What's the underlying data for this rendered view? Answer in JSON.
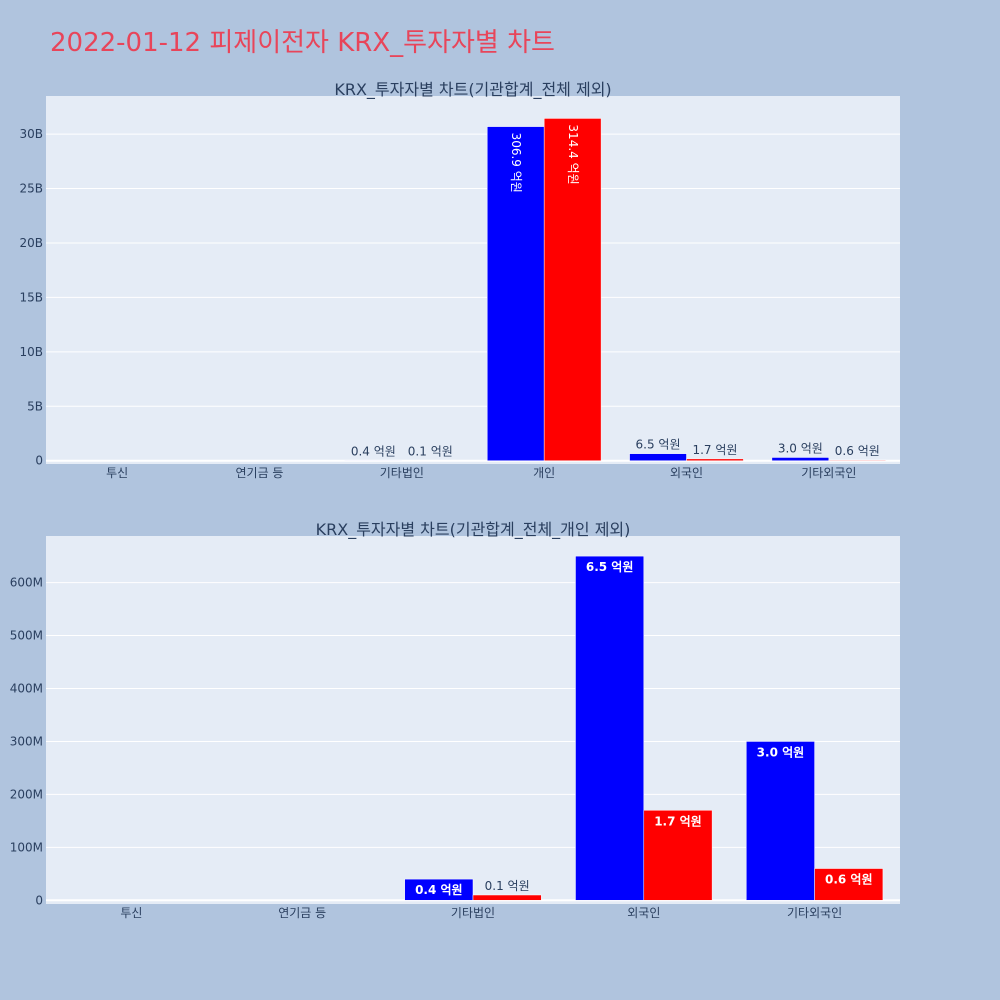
{
  "title": "2022-01-12 피제이전자 KRX_투자자별 차트",
  "colors": {
    "series1": "#0000ff",
    "series2": "#ff0000",
    "plot_bg": "#e5ecf6",
    "page_bg": "#b0c4de",
    "title": "#e8455a"
  },
  "chart_data": [
    {
      "type": "bar",
      "title": "KRX_투자자별 차트(기관합계_전체 제외)",
      "categories": [
        "투신",
        "연기금 등",
        "기타법인",
        "개인",
        "외국인",
        "기타외국인"
      ],
      "series": [
        {
          "values": [
            0,
            0,
            40000000,
            30690000000,
            650000000,
            300000000
          ],
          "labels": [
            "",
            "",
            "0.4 억원",
            "306.9 억원",
            "6.5 억원",
            "3.0 억원"
          ]
        },
        {
          "values": [
            0,
            0,
            10000000,
            31440000000,
            170000000,
            60000000
          ],
          "labels": [
            "",
            "",
            "0.1 억원",
            "314.4 억원",
            "1.7 억원",
            "0.6 억원"
          ]
        }
      ],
      "ylim": [
        -300000000,
        33500000000
      ],
      "yticks": [
        0,
        5000000000,
        10000000000,
        15000000000,
        20000000000,
        25000000000,
        30000000000
      ],
      "ytick_labels": [
        "0",
        "5B",
        "10B",
        "15B",
        "20B",
        "25B",
        "30B"
      ],
      "grid": true
    },
    {
      "type": "bar",
      "title": "KRX_투자자별 차트(기관합계_전체_개인 제외)",
      "categories": [
        "투신",
        "연기금 등",
        "기타법인",
        "외국인",
        "기타외국인"
      ],
      "series": [
        {
          "values": [
            0,
            0,
            40000000,
            650000000,
            300000000
          ],
          "labels": [
            "",
            "",
            "0.4 억원",
            "6.5 억원",
            "3.0 억원"
          ]
        },
        {
          "values": [
            0,
            0,
            10000000,
            170000000,
            60000000
          ],
          "labels": [
            "",
            "",
            "0.1 억원",
            "1.7 억원",
            "0.6 억원"
          ]
        }
      ],
      "ylim": [
        -7000000,
        688000000
      ],
      "yticks": [
        0,
        100000000,
        200000000,
        300000000,
        400000000,
        500000000,
        600000000
      ],
      "ytick_labels": [
        "0",
        "100M",
        "200M",
        "300M",
        "400M",
        "500M",
        "600M"
      ],
      "grid": true
    }
  ]
}
